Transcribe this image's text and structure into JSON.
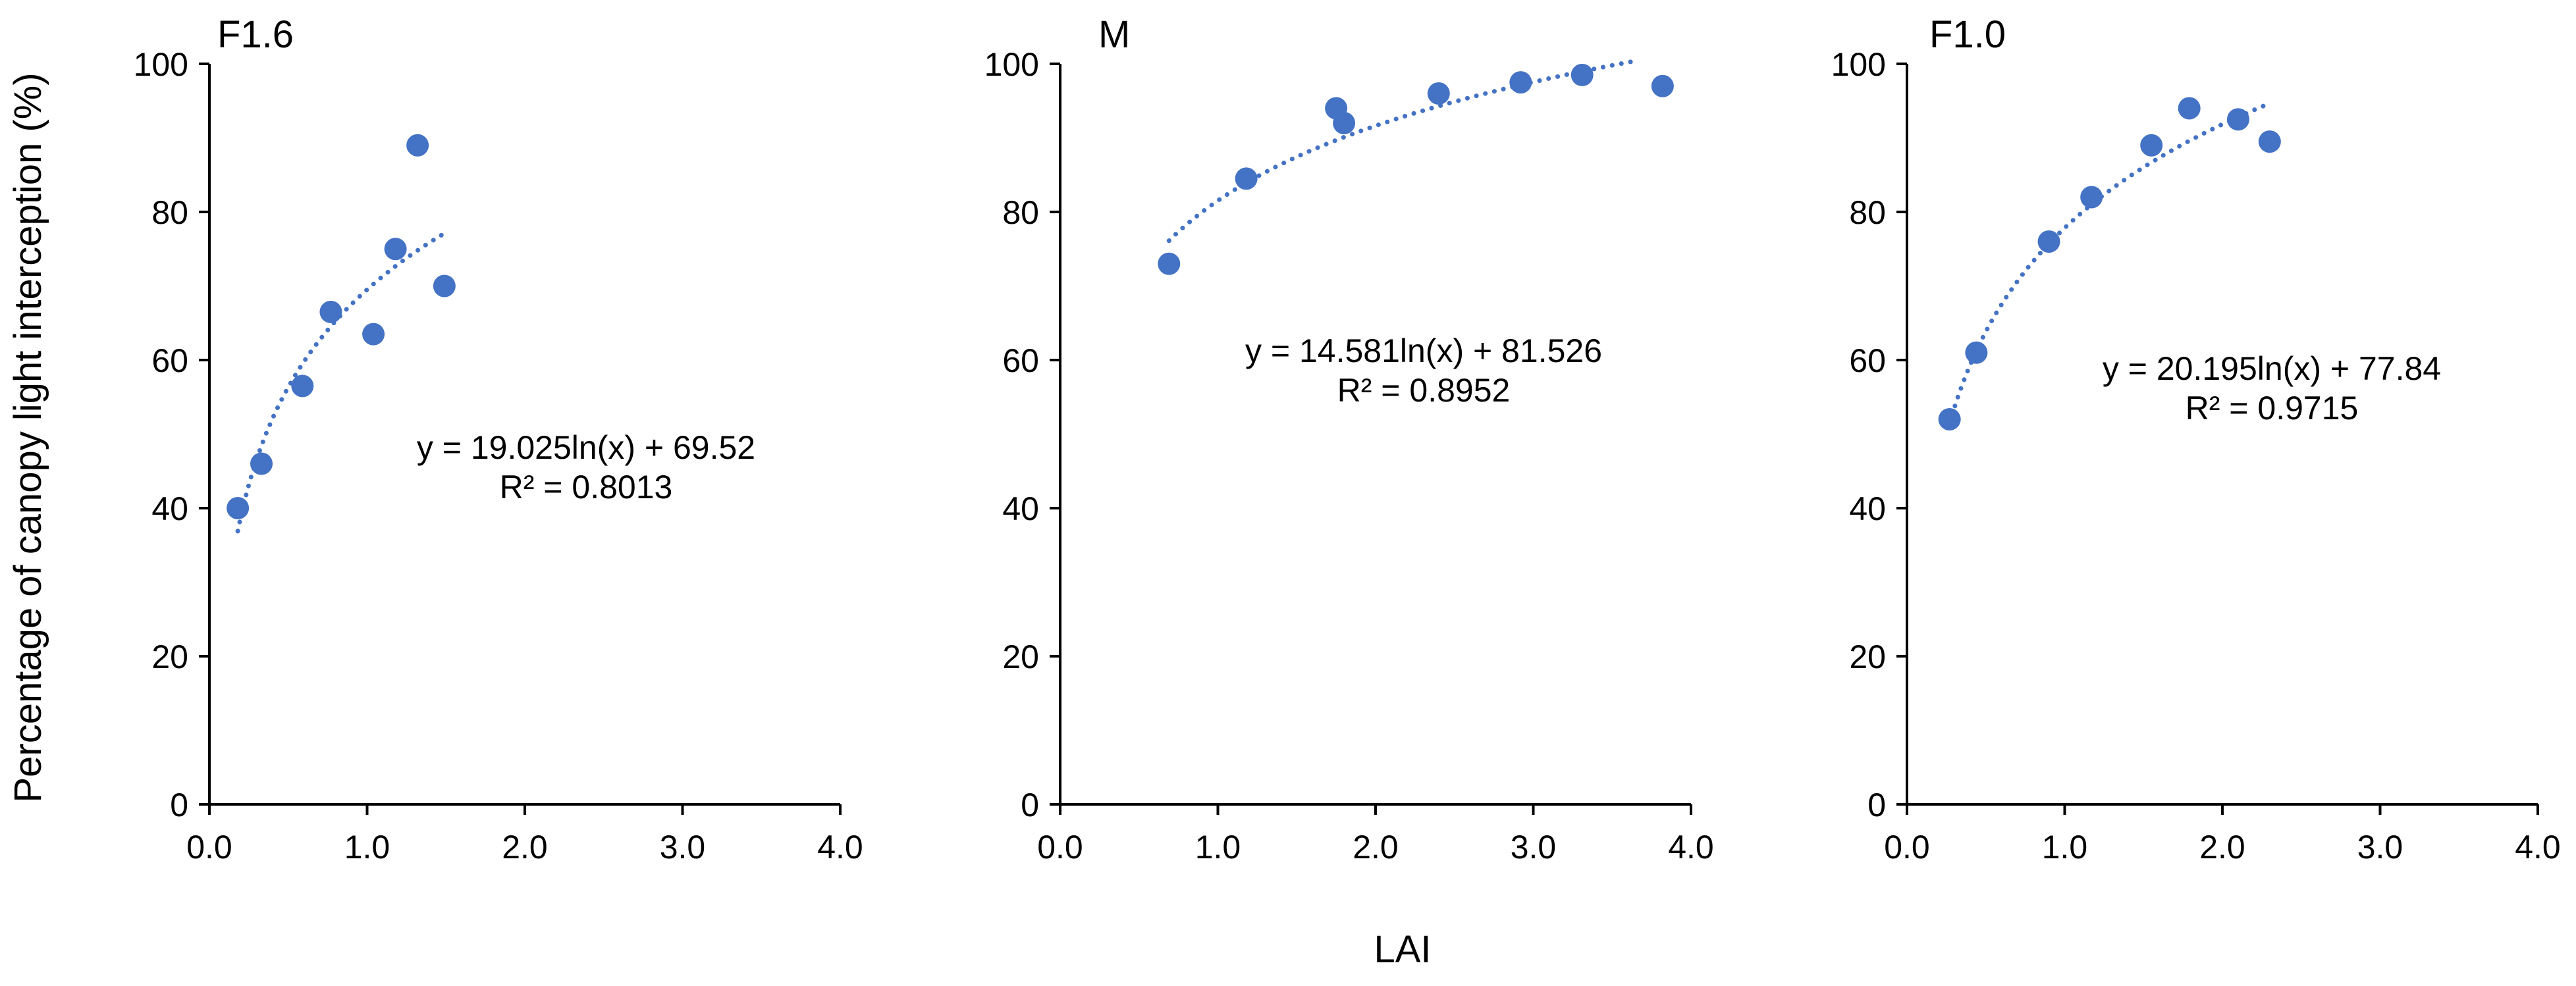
{
  "figure": {
    "ylabel": "Percentage of canopy light interception (%)",
    "xlabel": "LAI",
    "colors": {
      "marker": "#4472C4",
      "trend": "#4472C4",
      "axis": "#000000"
    }
  },
  "chart_data": [
    {
      "type": "scatter",
      "title": "F1.6",
      "xlim": [
        0,
        4
      ],
      "ylim": [
        0,
        100
      ],
      "x_ticks": [
        "0.0",
        "1.0",
        "2.0",
        "3.0",
        "4.0"
      ],
      "y_ticks": [
        "0",
        "20",
        "40",
        "60",
        "80",
        "100"
      ],
      "points": [
        {
          "x": 0.18,
          "y": 40
        },
        {
          "x": 0.33,
          "y": 46
        },
        {
          "x": 0.59,
          "y": 56.5
        },
        {
          "x": 0.77,
          "y": 66.5
        },
        {
          "x": 1.04,
          "y": 63.5
        },
        {
          "x": 1.18,
          "y": 75
        },
        {
          "x": 1.32,
          "y": 89
        },
        {
          "x": 1.49,
          "y": 70
        }
      ],
      "trendline": {
        "type": "log",
        "a": 19.025,
        "b": 69.52,
        "x_range": [
          0.18,
          1.49
        ]
      },
      "equation": "y = 19.025ln(x) + 69.52",
      "r2": "R² = 0.8013"
    },
    {
      "type": "scatter",
      "title": "M",
      "xlim": [
        0,
        4
      ],
      "ylim": [
        0,
        100
      ],
      "x_ticks": [
        "0.0",
        "1.0",
        "2.0",
        "3.0",
        "4.0"
      ],
      "y_ticks": [
        "0",
        "20",
        "40",
        "60",
        "80",
        "100"
      ],
      "points": [
        {
          "x": 0.69,
          "y": 73
        },
        {
          "x": 1.18,
          "y": 84.5
        },
        {
          "x": 1.75,
          "y": 94
        },
        {
          "x": 1.8,
          "y": 92
        },
        {
          "x": 2.4,
          "y": 96
        },
        {
          "x": 2.92,
          "y": 97.5
        },
        {
          "x": 3.31,
          "y": 98.5
        },
        {
          "x": 3.82,
          "y": 97
        }
      ],
      "trendline": {
        "type": "log",
        "a": 14.581,
        "b": 81.526,
        "x_range": [
          0.69,
          3.65
        ]
      },
      "equation": "y = 14.581ln(x) + 81.526",
      "r2": "R² = 0.8952"
    },
    {
      "type": "scatter",
      "title": "F1.0",
      "xlim": [
        0,
        4
      ],
      "ylim": [
        0,
        100
      ],
      "x_ticks": [
        "0.0",
        "1.0",
        "2.0",
        "3.0",
        "4.0"
      ],
      "y_ticks": [
        "0",
        "20",
        "40",
        "60",
        "80",
        "100"
      ],
      "points": [
        {
          "x": 0.27,
          "y": 52
        },
        {
          "x": 0.44,
          "y": 61
        },
        {
          "x": 0.9,
          "y": 76
        },
        {
          "x": 1.17,
          "y": 82
        },
        {
          "x": 1.55,
          "y": 89
        },
        {
          "x": 1.79,
          "y": 94
        },
        {
          "x": 2.1,
          "y": 92.5
        },
        {
          "x": 2.3,
          "y": 89.5
        }
      ],
      "trendline": {
        "type": "log",
        "a": 20.195,
        "b": 77.84,
        "x_range": [
          0.27,
          2.3
        ]
      },
      "equation": "y = 20.195ln(x) + 77.84",
      "r2": "R² = 0.9715"
    }
  ]
}
